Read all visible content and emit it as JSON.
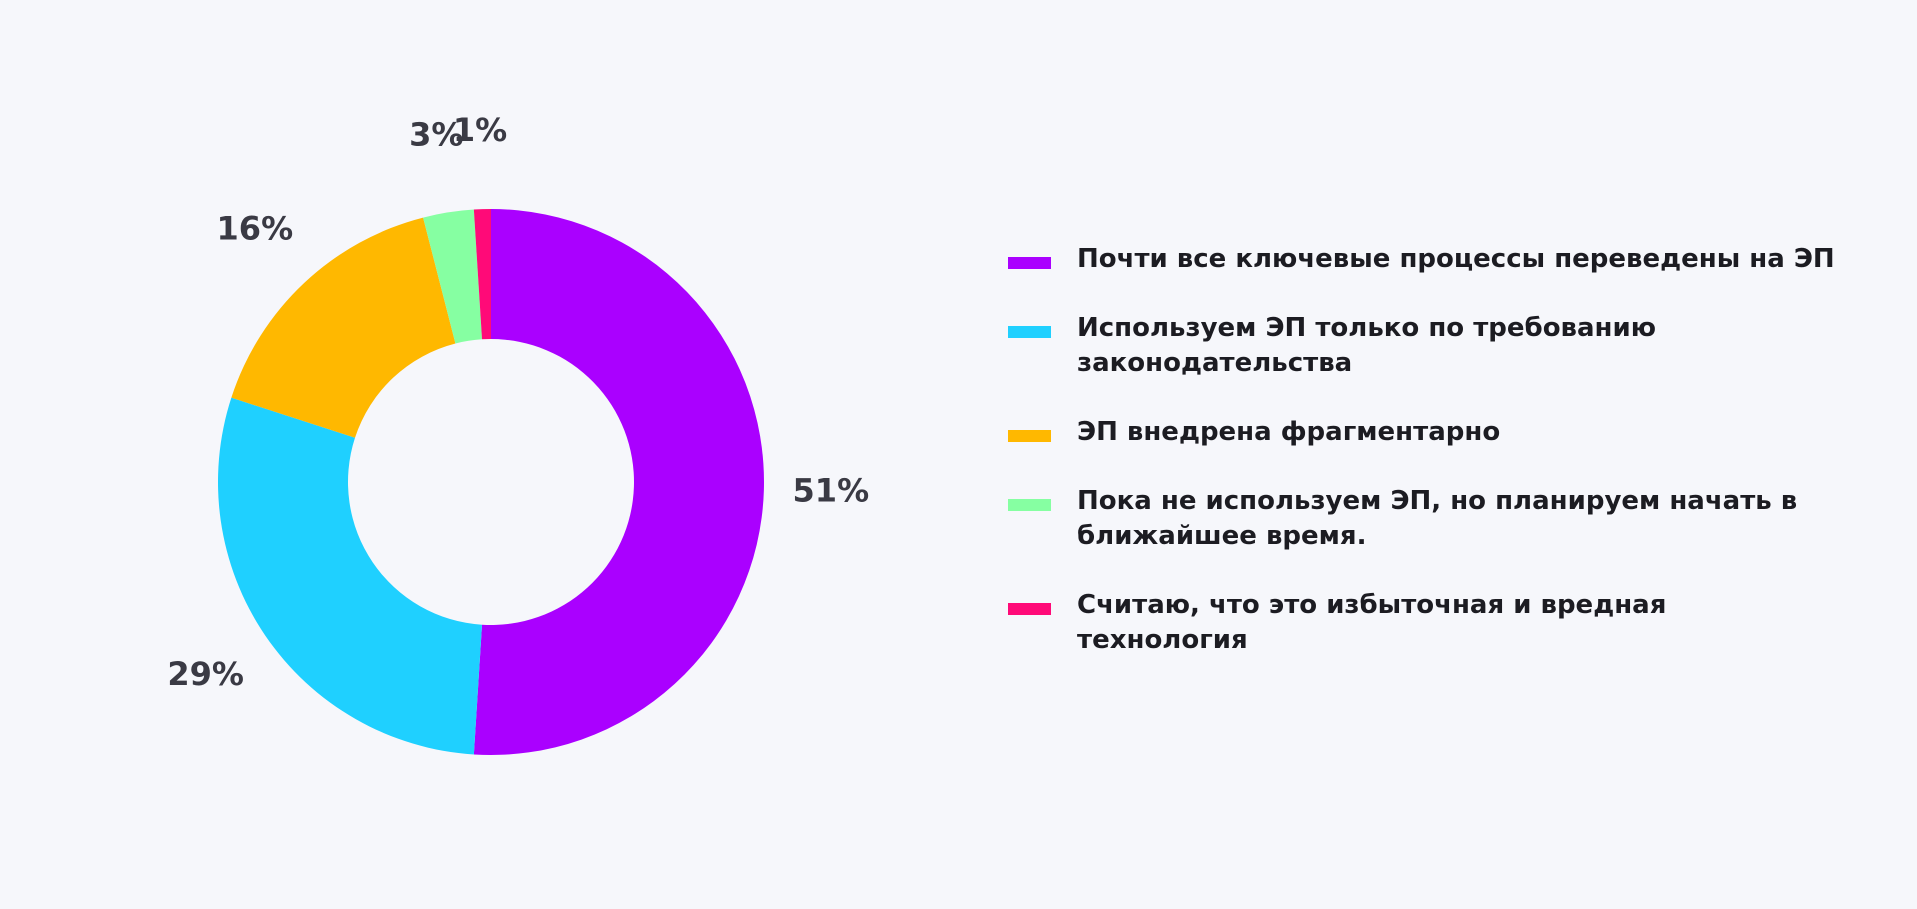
{
  "chart_data": {
    "type": "pie",
    "donut": true,
    "categories": [
      "Почти все ключевые процессы переведены на ЭП",
      "Используем ЭП только по требованию законодательства",
      "ЭП внедрена фрагментарно",
      "Пока не используем ЭП, но планируем начать в ближайшее время.",
      "Считаю, что это избыточная и вредная технология"
    ],
    "values": [
      51,
      29,
      16,
      3,
      1
    ],
    "data_labels": [
      "51%",
      "29%",
      "16%",
      "3%",
      "1%"
    ],
    "colors": [
      "#aa00ff",
      "#1fd0ff",
      "#ffb800",
      "#86ffa2",
      "#ff0a78"
    ],
    "legend_position": "right",
    "start": "top",
    "direction": "clockwise"
  }
}
